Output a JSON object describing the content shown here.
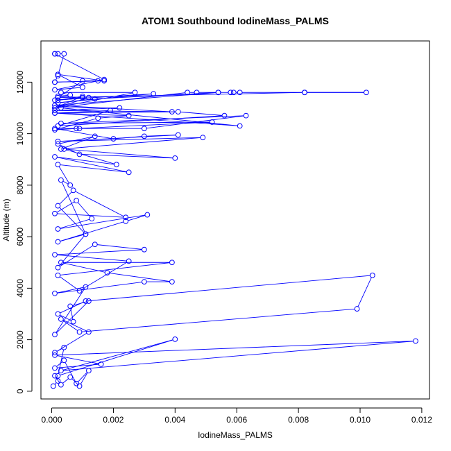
{
  "chart_data": {
    "type": "line",
    "title": "ATOM1 Southbound IodineMass_PALMS",
    "xlabel": "IodineMass_PALMS",
    "ylabel": "Altitude (m)",
    "xlim": [
      -0.00035,
      0.01225
    ],
    "ylim": [
      -300,
      13600
    ],
    "xticks": [
      0.0,
      0.002,
      0.004,
      0.006,
      0.008,
      0.01,
      0.012
    ],
    "xtick_labels": [
      "0.000",
      "0.002",
      "0.004",
      "0.006",
      "0.008",
      "0.010",
      "0.012"
    ],
    "yticks": [
      0,
      2000,
      4000,
      6000,
      8000,
      10000,
      12000
    ],
    "ytick_labels": [
      "0",
      "2000",
      "4000",
      "6000",
      "8000",
      "10000",
      "12000"
    ],
    "grid": false,
    "legend": "none",
    "series": [
      {
        "color": "#0000ff",
        "marker": "open-circle",
        "x": [
          5e-05,
          0.0002,
          0.0001,
          0.0003,
          0.0006,
          0.0009,
          0.0012,
          0.0008,
          0.0004,
          0.0001,
          0.0016,
          0.0001,
          0.0118,
          0.0003,
          0.004,
          0.0002,
          0.0004,
          0.0001,
          0.0012,
          0.0003,
          0.0009,
          0.0099,
          0.0104,
          0.0011,
          0.0002,
          0.0007,
          0.0006,
          0.0012,
          0.0001,
          0.0011,
          0.0001,
          0.003,
          0.0039,
          0.0018,
          0.0003,
          0.0039,
          0.0002,
          0.0009,
          0.0025,
          0.0001,
          0.003,
          0.0014,
          0.0002,
          0.0011,
          0.0002,
          0.0024,
          0.0031,
          0.0002,
          0.0013,
          0.0008,
          0.0001,
          0.0024,
          0.0007,
          0.0002,
          0.0011,
          0.0003,
          0.0006,
          0.0002,
          0.0025,
          0.0001,
          0.0021,
          0.0004,
          0.004,
          0.0009,
          0.0002,
          0.0014,
          0.0003,
          0.0049,
          0.0002,
          0.0041,
          0.003,
          0.002,
          0.0001,
          0.0009,
          0.003,
          0.0063,
          0.0003,
          0.0052,
          0.0008,
          0.0001,
          0.0015,
          0.0025,
          0.0001,
          0.0041,
          0.0056,
          0.0002,
          0.0019,
          0.0001,
          0.0061,
          0.0003,
          0.0022,
          0.0001,
          0.0039,
          0.0001,
          0.0054,
          0.0014,
          0.0002,
          0.0033,
          0.0001,
          0.001,
          0.0002,
          0.0006,
          0.0003,
          0.0027,
          0.0001,
          0.0012,
          0.0002,
          0.001,
          0.0001,
          0.0044,
          0.0047,
          0.0054,
          0.0058,
          0.0059,
          0.0061,
          0.0082,
          0.0102,
          0.0082,
          0.0002,
          0.001,
          0.0015,
          0.0001,
          0.0017,
          0.0002,
          0.001,
          0.0001,
          0.0017,
          0.0001,
          0.0001,
          0.0002,
          0.0004,
          0.0002,
          0.0001
        ],
        "y": [
          200,
          400,
          600,
          250,
          550,
          200,
          800,
          300,
          1200,
          900,
          1050,
          1400,
          1950,
          800,
          2020,
          600,
          1700,
          1500,
          2300,
          2800,
          2300,
          3200,
          4500,
          3500,
          3000,
          2700,
          3300,
          3500,
          2200,
          4050,
          3800,
          4250,
          4250,
          4600,
          5000,
          5000,
          4500,
          3900,
          5050,
          5300,
          5500,
          5700,
          4800,
          6100,
          5800,
          6600,
          6850,
          6300,
          6700,
          7400,
          6900,
          6750,
          7800,
          7200,
          6100,
          8200,
          8000,
          8800,
          8500,
          9100,
          8800,
          9400,
          9050,
          9200,
          9600,
          9900,
          9400,
          9850,
          9700,
          9950,
          9900,
          9800,
          10200,
          10200,
          10200,
          10700,
          10400,
          10450,
          10200,
          10150,
          10600,
          10700,
          10800,
          10850,
          10700,
          10300,
          10900,
          10800,
          10300,
          11000,
          11000,
          10900,
          10850,
          11100,
          11600,
          11350,
          11200,
          11550,
          11300,
          11400,
          11450,
          11500,
          11600,
          11600,
          11000,
          11400,
          11300,
          11450,
          11000,
          11600,
          11600,
          11600,
          11600,
          11600,
          11600,
          11600,
          11600,
          11600,
          11400,
          12050,
          12050,
          12000,
          12050,
          12300,
          11800,
          11700,
          12100,
          13100,
          13100,
          13100,
          13100,
          12250,
          12000
        ]
      }
    ]
  }
}
